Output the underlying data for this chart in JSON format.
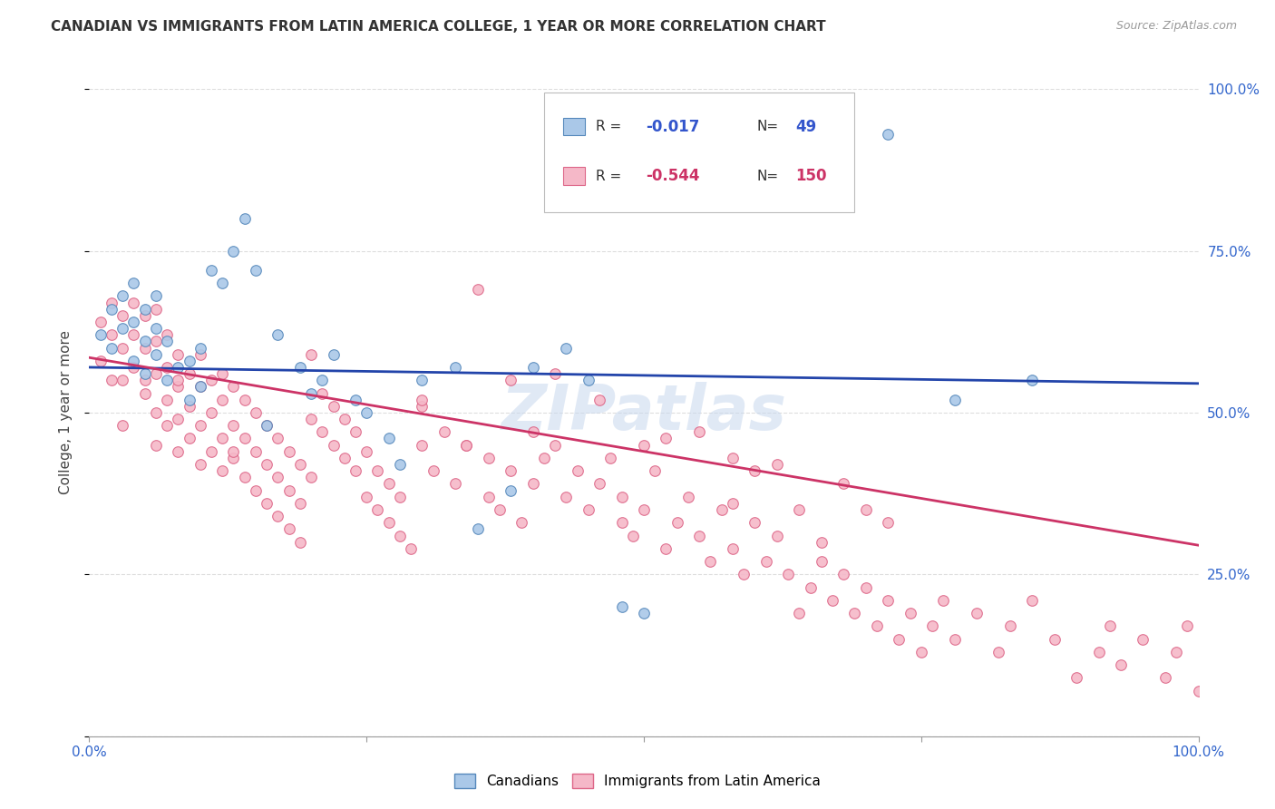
{
  "title": "CANADIAN VS IMMIGRANTS FROM LATIN AMERICA COLLEGE, 1 YEAR OR MORE CORRELATION CHART",
  "source": "Source: ZipAtlas.com",
  "ylabel": "College, 1 year or more",
  "xlim": [
    0.0,
    1.0
  ],
  "ylim": [
    0.0,
    1.0
  ],
  "yticks": [
    0.0,
    0.25,
    0.5,
    0.75,
    1.0
  ],
  "right_ytick_labels": [
    "",
    "25.0%",
    "50.0%",
    "75.0%",
    "100.0%"
  ],
  "xtick_positions": [
    0.0,
    0.25,
    0.5,
    0.75,
    1.0
  ],
  "xtick_labels": [
    "0.0%",
    "",
    "",
    "",
    "100.0%"
  ],
  "background_color": "#ffffff",
  "grid_color": "#dddddd",
  "canadians_color": "#aac8e8",
  "canadians_edge_color": "#5588bb",
  "immigrants_color": "#f5b8c8",
  "immigrants_edge_color": "#dd6688",
  "line_canadian_color": "#2244aa",
  "line_immigrant_color": "#cc3366",
  "marker_size": 70,
  "can_line_start": 0.57,
  "can_line_end": 0.545,
  "imm_line_start": 0.585,
  "imm_line_end": 0.295,
  "canadians_x": [
    0.01,
    0.02,
    0.02,
    0.03,
    0.03,
    0.04,
    0.04,
    0.04,
    0.05,
    0.05,
    0.05,
    0.06,
    0.06,
    0.06,
    0.07,
    0.07,
    0.08,
    0.09,
    0.09,
    0.1,
    0.1,
    0.11,
    0.12,
    0.13,
    0.14,
    0.15,
    0.16,
    0.17,
    0.19,
    0.2,
    0.21,
    0.22,
    0.24,
    0.25,
    0.27,
    0.28,
    0.3,
    0.33,
    0.35,
    0.38,
    0.4,
    0.43,
    0.45,
    0.48,
    0.5,
    0.55,
    0.72,
    0.78,
    0.85
  ],
  "canadians_y": [
    0.62,
    0.6,
    0.66,
    0.63,
    0.68,
    0.58,
    0.64,
    0.7,
    0.56,
    0.61,
    0.66,
    0.59,
    0.63,
    0.68,
    0.55,
    0.61,
    0.57,
    0.52,
    0.58,
    0.54,
    0.6,
    0.72,
    0.7,
    0.75,
    0.8,
    0.72,
    0.48,
    0.62,
    0.57,
    0.53,
    0.55,
    0.59,
    0.52,
    0.5,
    0.46,
    0.42,
    0.55,
    0.57,
    0.32,
    0.38,
    0.57,
    0.6,
    0.55,
    0.2,
    0.19,
    0.87,
    0.93,
    0.52,
    0.55
  ],
  "immigrants_x": [
    0.01,
    0.01,
    0.02,
    0.02,
    0.02,
    0.03,
    0.03,
    0.03,
    0.03,
    0.04,
    0.04,
    0.04,
    0.05,
    0.05,
    0.05,
    0.05,
    0.06,
    0.06,
    0.06,
    0.06,
    0.06,
    0.07,
    0.07,
    0.07,
    0.07,
    0.08,
    0.08,
    0.08,
    0.08,
    0.08,
    0.09,
    0.09,
    0.09,
    0.1,
    0.1,
    0.1,
    0.1,
    0.11,
    0.11,
    0.11,
    0.12,
    0.12,
    0.12,
    0.12,
    0.13,
    0.13,
    0.13,
    0.13,
    0.14,
    0.14,
    0.14,
    0.15,
    0.15,
    0.15,
    0.16,
    0.16,
    0.16,
    0.17,
    0.17,
    0.17,
    0.18,
    0.18,
    0.18,
    0.19,
    0.19,
    0.19,
    0.2,
    0.2,
    0.2,
    0.21,
    0.21,
    0.22,
    0.22,
    0.23,
    0.23,
    0.24,
    0.24,
    0.25,
    0.25,
    0.26,
    0.26,
    0.27,
    0.27,
    0.28,
    0.28,
    0.29,
    0.3,
    0.3,
    0.31,
    0.32,
    0.33,
    0.34,
    0.35,
    0.36,
    0.36,
    0.37,
    0.38,
    0.38,
    0.39,
    0.4,
    0.4,
    0.41,
    0.42,
    0.43,
    0.44,
    0.45,
    0.46,
    0.47,
    0.48,
    0.48,
    0.49,
    0.5,
    0.5,
    0.51,
    0.52,
    0.53,
    0.54,
    0.55,
    0.56,
    0.57,
    0.58,
    0.58,
    0.59,
    0.6,
    0.61,
    0.62,
    0.63,
    0.64,
    0.65,
    0.66,
    0.67,
    0.68,
    0.69,
    0.7,
    0.71,
    0.72,
    0.73,
    0.74,
    0.75,
    0.76,
    0.77,
    0.78,
    0.8,
    0.82,
    0.83,
    0.85,
    0.87,
    0.89,
    0.91,
    0.92,
    0.93,
    0.95,
    0.97,
    0.98,
    0.99,
    1.0,
    0.58,
    0.62,
    0.66,
    0.7,
    0.52,
    0.46,
    0.42,
    0.55,
    0.6,
    0.64,
    0.68,
    0.72,
    0.3,
    0.34
  ],
  "immigrants_y": [
    0.64,
    0.58,
    0.62,
    0.67,
    0.55,
    0.6,
    0.65,
    0.55,
    0.48,
    0.62,
    0.67,
    0.57,
    0.53,
    0.6,
    0.65,
    0.55,
    0.5,
    0.56,
    0.61,
    0.66,
    0.45,
    0.52,
    0.57,
    0.62,
    0.48,
    0.54,
    0.59,
    0.49,
    0.44,
    0.55,
    0.46,
    0.51,
    0.56,
    0.42,
    0.48,
    0.54,
    0.59,
    0.44,
    0.5,
    0.55,
    0.41,
    0.46,
    0.52,
    0.56,
    0.43,
    0.48,
    0.54,
    0.44,
    0.4,
    0.46,
    0.52,
    0.38,
    0.44,
    0.5,
    0.36,
    0.42,
    0.48,
    0.34,
    0.4,
    0.46,
    0.32,
    0.38,
    0.44,
    0.3,
    0.36,
    0.42,
    0.59,
    0.49,
    0.4,
    0.47,
    0.53,
    0.45,
    0.51,
    0.43,
    0.49,
    0.41,
    0.47,
    0.37,
    0.44,
    0.35,
    0.41,
    0.33,
    0.39,
    0.31,
    0.37,
    0.29,
    0.45,
    0.51,
    0.41,
    0.47,
    0.39,
    0.45,
    0.69,
    0.37,
    0.43,
    0.35,
    0.41,
    0.55,
    0.33,
    0.47,
    0.39,
    0.43,
    0.45,
    0.37,
    0.41,
    0.35,
    0.39,
    0.43,
    0.33,
    0.37,
    0.31,
    0.45,
    0.35,
    0.41,
    0.29,
    0.33,
    0.37,
    0.31,
    0.27,
    0.35,
    0.43,
    0.29,
    0.25,
    0.33,
    0.27,
    0.31,
    0.25,
    0.19,
    0.23,
    0.27,
    0.21,
    0.25,
    0.19,
    0.23,
    0.17,
    0.21,
    0.15,
    0.19,
    0.13,
    0.17,
    0.21,
    0.15,
    0.19,
    0.13,
    0.17,
    0.21,
    0.15,
    0.09,
    0.13,
    0.17,
    0.11,
    0.15,
    0.09,
    0.13,
    0.17,
    0.07,
    0.36,
    0.42,
    0.3,
    0.35,
    0.46,
    0.52,
    0.56,
    0.47,
    0.41,
    0.35,
    0.39,
    0.33,
    0.52,
    0.45
  ]
}
